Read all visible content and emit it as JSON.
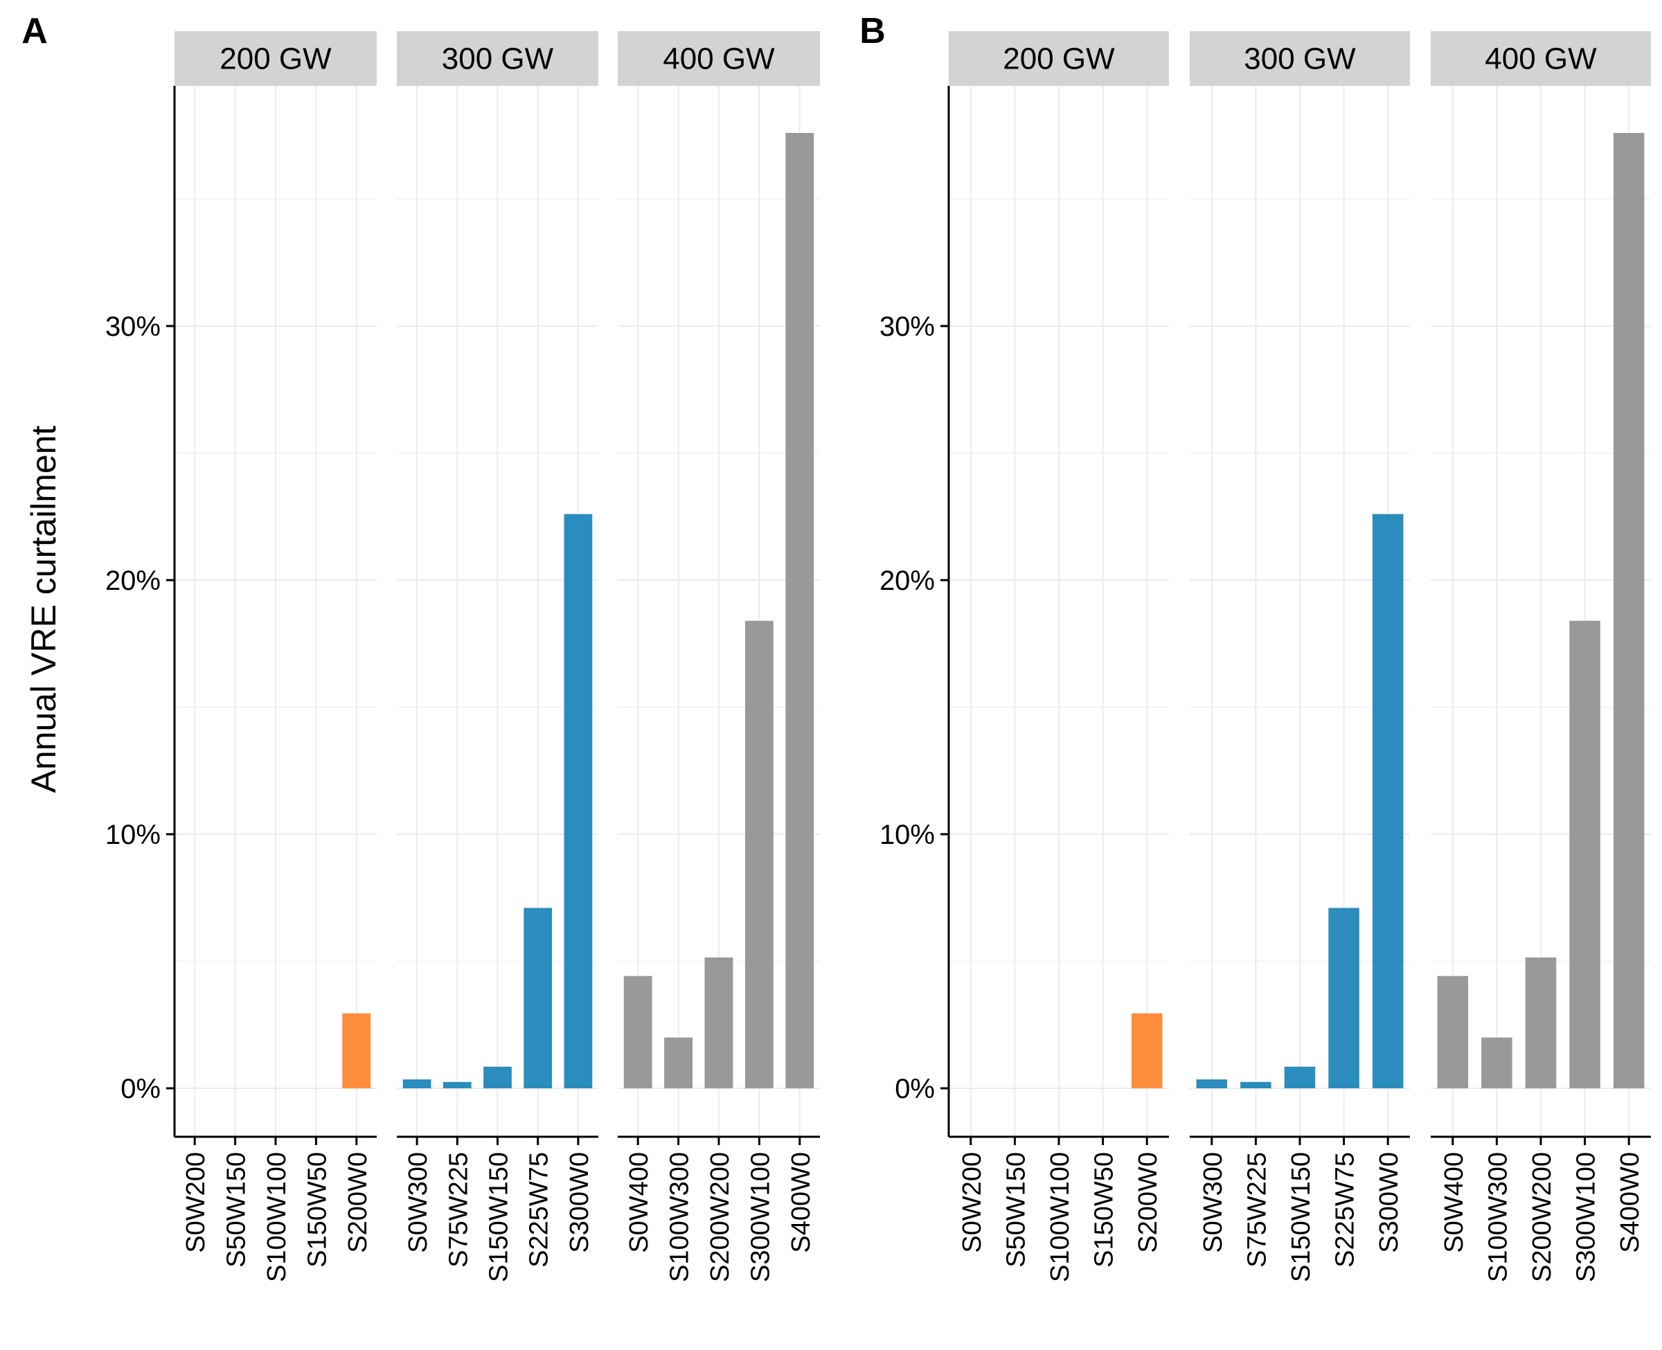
{
  "colors": {
    "200 GW": "#FF8C3A",
    "300 GW": "#2B8CBE",
    "400 GW": "#999999",
    "strip": "#D3D3D3",
    "grid": "#EBEBEB"
  },
  "chart_data": [
    {
      "type": "bar",
      "panel": "A",
      "ylabel": "Annual VRE curtailment",
      "ylim": [
        -0.019,
        0.376
      ],
      "yticks": [
        0,
        0.1,
        0.2,
        0.3
      ],
      "ytick_labels": [
        "0%",
        "10%",
        "20%",
        "30%"
      ],
      "grid": true,
      "facets": [
        {
          "label": "200 GW",
          "categories": [
            "S0W200",
            "S50W150",
            "S100W100",
            "S150W50",
            "S200W0"
          ],
          "values": [
            0,
            0,
            0,
            0,
            0.0295
          ]
        },
        {
          "label": "300 GW",
          "categories": [
            "S0W300",
            "S75W225",
            "S150W150",
            "S225W75",
            "S300W0"
          ],
          "values": [
            0.0035,
            0.0025,
            0.0085,
            0.071,
            0.226
          ]
        },
        {
          "label": "400 GW",
          "categories": [
            "S0W400",
            "S100W300",
            "S200W200",
            "S300W100",
            "S400W0"
          ],
          "values": [
            0.0442,
            0.02,
            0.0515,
            0.184,
            0.376
          ]
        }
      ]
    },
    {
      "type": "bar",
      "panel": "B",
      "ylabel": "",
      "ylim": [
        -0.019,
        0.376
      ],
      "yticks": [
        0,
        0.1,
        0.2,
        0.3
      ],
      "ytick_labels": [
        "0%",
        "10%",
        "20%",
        "30%"
      ],
      "grid": true,
      "facets": [
        {
          "label": "200 GW",
          "categories": [
            "S0W200",
            "S50W150",
            "S100W100",
            "S150W50",
            "S200W0"
          ],
          "values": [
            0,
            0,
            0,
            0,
            0.0295
          ]
        },
        {
          "label": "300 GW",
          "categories": [
            "S0W300",
            "S75W225",
            "S150W150",
            "S225W75",
            "S300W0"
          ],
          "values": [
            0.0035,
            0.0025,
            0.0085,
            0.071,
            0.226
          ]
        },
        {
          "label": "400 GW",
          "categories": [
            "S0W400",
            "S100W300",
            "S200W200",
            "S300W100",
            "S400W0"
          ],
          "values": [
            0.0442,
            0.02,
            0.0515,
            0.184,
            0.376
          ]
        }
      ]
    }
  ]
}
